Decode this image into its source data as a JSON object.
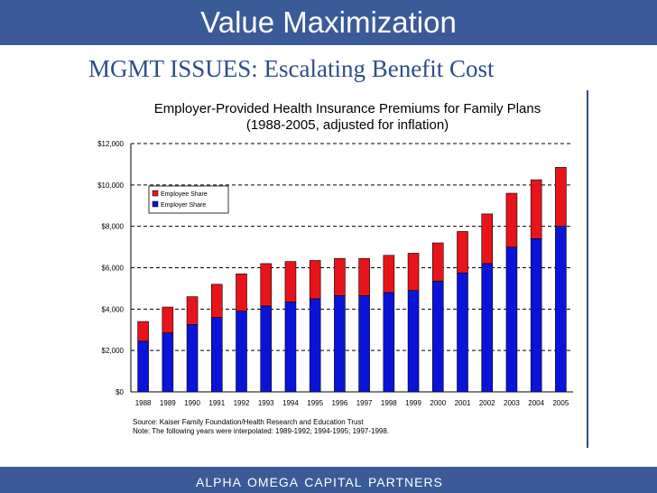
{
  "header": {
    "title": "Value Maximization"
  },
  "subtitle": "MGMT ISSUES: Escalating Benefit Cost",
  "footer": "ALPHA OMEGA CAPITAL PARTNERS",
  "colors": {
    "bar_band": "#3a5b97",
    "employee": "#e8141a",
    "employer": "#0a14d8",
    "subtitle": "#2e4d8a"
  },
  "chart_data": {
    "type": "bar",
    "stacked": true,
    "title_line1": "Employer-Provided Health Insurance Premiums for Family Plans",
    "title_line2": "(1988-2005, adjusted for inflation)",
    "categories": [
      "1988",
      "1989",
      "1990",
      "1991",
      "1992",
      "1993",
      "1994",
      "1995",
      "1996",
      "1997",
      "1998",
      "1999",
      "2000",
      "2001",
      "2002",
      "2003",
      "2004",
      "2005"
    ],
    "series": [
      {
        "name": "Employer Share",
        "values": [
          2450,
          2850,
          3250,
          3600,
          3900,
          4150,
          4350,
          4500,
          4650,
          4650,
          4800,
          4900,
          5350,
          5750,
          6200,
          7000,
          7400,
          8000
        ]
      },
      {
        "name": "Employee Share",
        "values": [
          950,
          1250,
          1350,
          1600,
          1800,
          2050,
          1950,
          1850,
          1800,
          1800,
          1800,
          1800,
          1850,
          2000,
          2400,
          2600,
          2850,
          2850
        ]
      }
    ],
    "y_ticks": [
      "$0",
      "$2,000",
      "$4,000",
      "$6,000",
      "$8,000",
      "$10,000",
      "$12,000"
    ],
    "ylim": [
      0,
      12000
    ],
    "legend": [
      "Employee Share",
      "Employer Share"
    ],
    "legend_position": "top-left",
    "grid": "dashed",
    "source_line1": "Source: Kaiser Family Foundation/Health Research and Education Trust",
    "source_line2": "Note: The following years were interpolated: 1989-1992; 1994-1995; 1997-1998."
  }
}
